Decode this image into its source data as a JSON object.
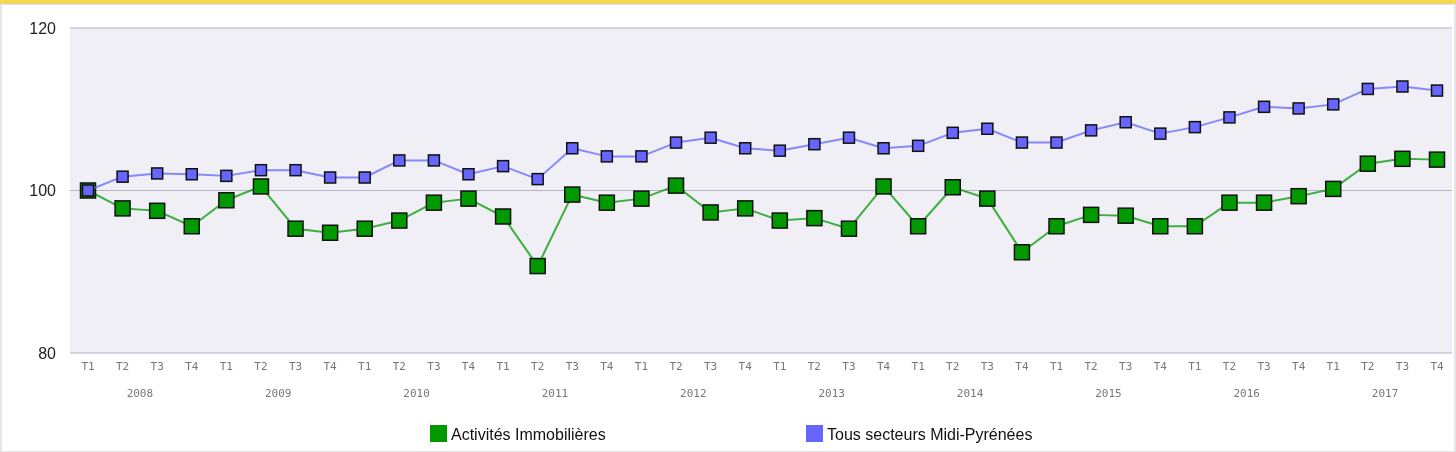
{
  "chart_data": {
    "type": "line",
    "categories": [
      "T1",
      "T2",
      "T3",
      "T4",
      "T1",
      "T2",
      "T3",
      "T4",
      "T1",
      "T2",
      "T3",
      "T4",
      "T1",
      "T2",
      "T3",
      "T4",
      "T1",
      "T2",
      "T3",
      "T4",
      "T1",
      "T2",
      "T3",
      "T4",
      "T1",
      "T2",
      "T3",
      "T4",
      "T1",
      "T2",
      "T3",
      "T4",
      "T1",
      "T2",
      "T3",
      "T4",
      "T1",
      "T2",
      "T3",
      "T4"
    ],
    "annotations": [
      "2008",
      "2009",
      "2010",
      "2011",
      "2012",
      "2013",
      "2014",
      "2015",
      "2016",
      "2017"
    ],
    "series": [
      {
        "name": "Activités Immobilières",
        "color": "#009900",
        "values": [
          100,
          97.8,
          97.5,
          95.6,
          98.8,
          100.5,
          95.3,
          94.8,
          95.3,
          96.3,
          98.5,
          99.0,
          96.8,
          90.7,
          99.5,
          98.5,
          99.0,
          100.6,
          97.3,
          97.8,
          96.3,
          96.6,
          95.3,
          100.5,
          95.6,
          100.4,
          99.0,
          92.4,
          95.6,
          97.0,
          96.9,
          95.6,
          95.6,
          98.5,
          98.5,
          99.3,
          100.2,
          103.3,
          103.9,
          103.8
        ]
      },
      {
        "name": "Tous secteurs Midi-Pyrénées",
        "color": "#6666ff",
        "values": [
          100,
          101.7,
          102.1,
          102.0,
          101.8,
          102.5,
          102.5,
          101.6,
          101.6,
          103.7,
          103.7,
          102.0,
          103.0,
          101.4,
          105.2,
          104.2,
          104.2,
          105.9,
          106.5,
          105.2,
          104.9,
          105.7,
          106.5,
          105.2,
          105.5,
          107.1,
          107.6,
          105.9,
          105.9,
          107.4,
          108.4,
          107.0,
          107.8,
          109.0,
          110.3,
          110.1,
          110.6,
          112.5,
          112.8,
          112.3
        ]
      }
    ],
    "ylim": [
      80,
      120
    ],
    "yticks": [
      80,
      100,
      120
    ],
    "grid": "y",
    "legend": "bottom",
    "marker": "square",
    "line_style": "solid"
  }
}
